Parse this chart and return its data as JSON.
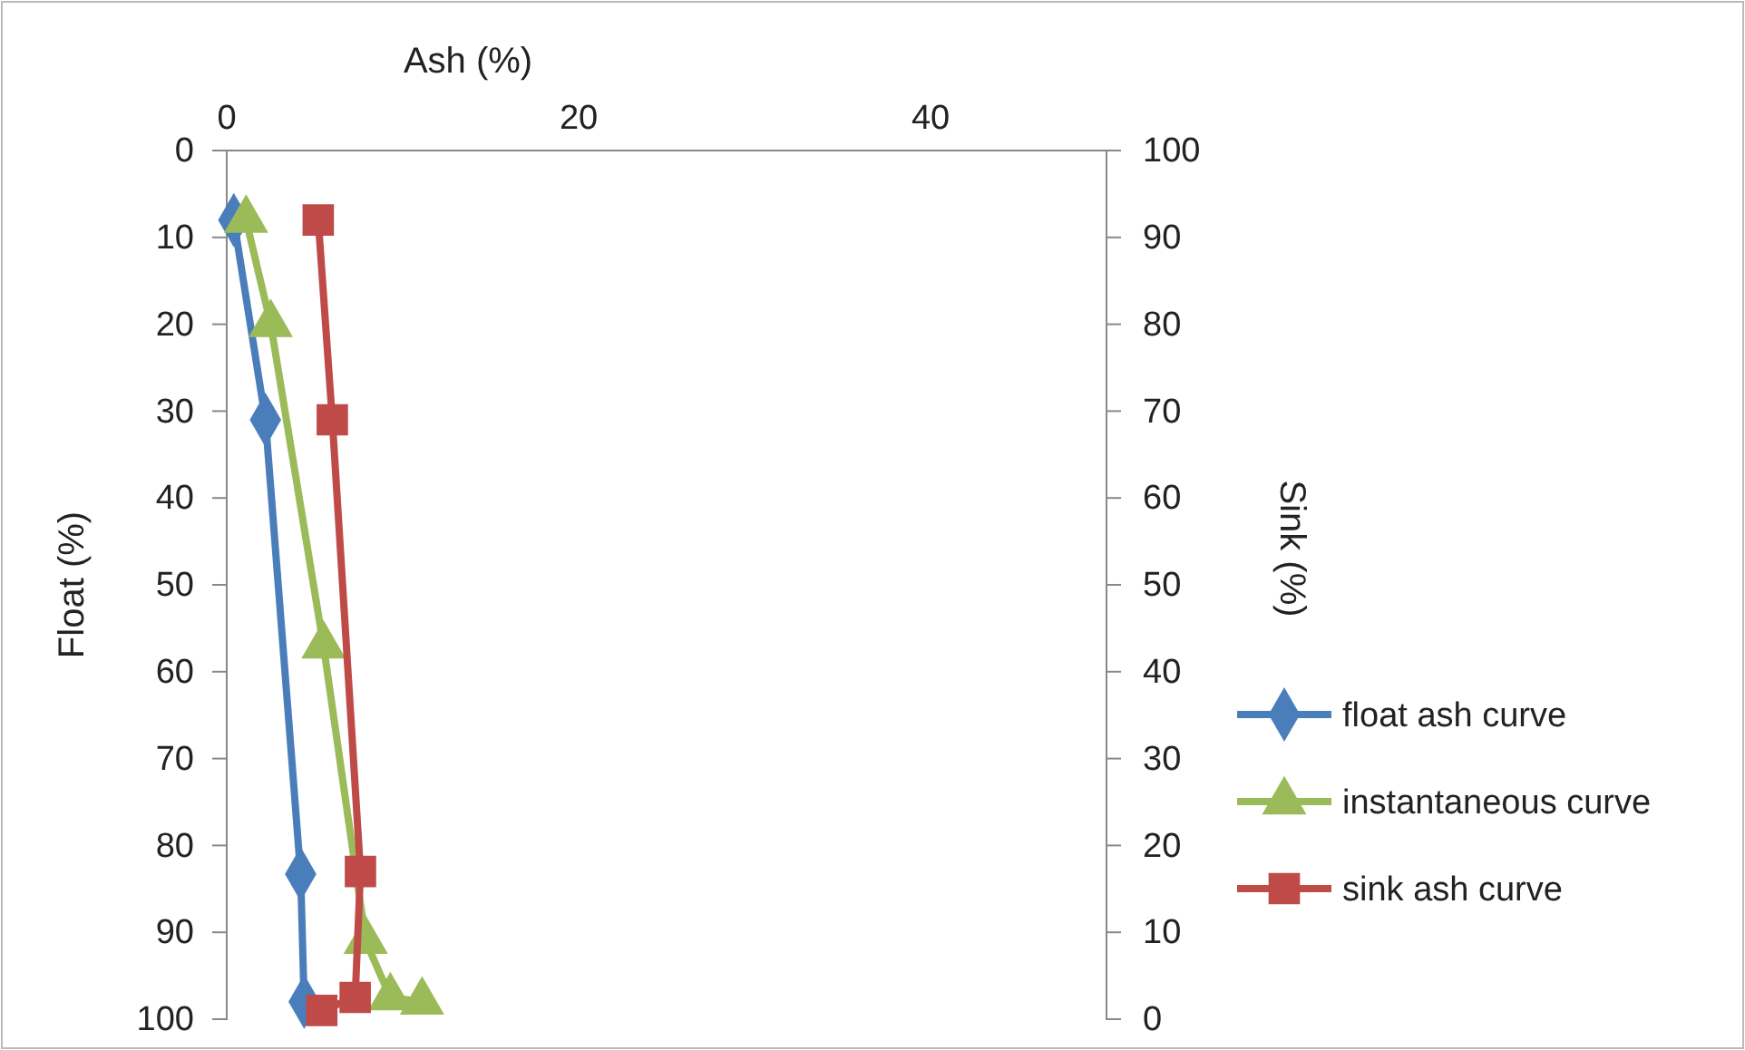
{
  "chart_data": {
    "type": "line",
    "xlabel": "Ash (%)",
    "ylabel": "Float (%)",
    "y2label": "Sink (%)",
    "xlim": [
      0,
      50
    ],
    "xticks": [
      0,
      20,
      40
    ],
    "ylim": [
      100,
      0
    ],
    "yticks": [
      0,
      10,
      20,
      30,
      40,
      50,
      60,
      70,
      80,
      90,
      100
    ],
    "y2lim": [
      0,
      100
    ],
    "y2ticks": [
      0,
      10,
      20,
      30,
      40,
      50,
      60,
      70,
      80,
      90,
      100
    ],
    "legend": "right",
    "grid": false,
    "series": [
      {
        "name": "float ash curve",
        "color": "#4a7ebb",
        "marker": "diamond",
        "x": [
          0.4,
          2.2,
          4.2,
          4.4
        ],
        "values": [
          8,
          31,
          83.3,
          98
        ]
      },
      {
        "name": "instantaneous curve",
        "color": "#9bbb59",
        "marker": "triangle",
        "x": [
          1.1,
          2.5,
          5.5,
          7.9,
          9.3,
          11.1
        ],
        "values": [
          8,
          20,
          57,
          91,
          97.5,
          98
        ]
      },
      {
        "name": "sink ash curve",
        "color": "#be4b48",
        "marker": "square",
        "axis": "y2",
        "x": [
          5.2,
          6.0,
          7.6,
          7.3,
          5.4
        ],
        "values": [
          92,
          69,
          17,
          2.5,
          1
        ]
      }
    ]
  }
}
